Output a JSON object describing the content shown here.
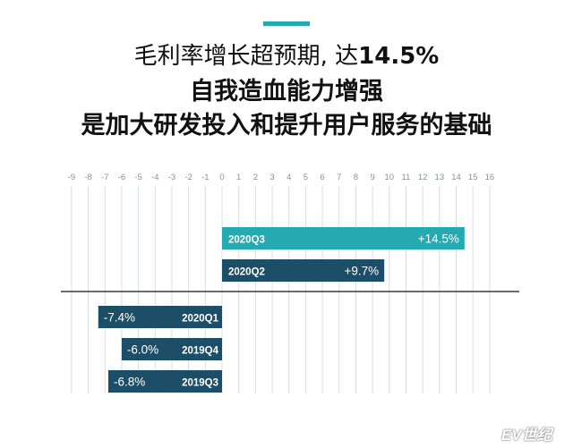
{
  "header": {
    "line1_prefix": "毛利率增长超预期, 达",
    "line1_highlight": "14.5%",
    "line2": "自我造血能力增强",
    "line3": "是加大研发投入和提升用户服务的基础"
  },
  "watermark": "EV世纪",
  "colors": {
    "accent": "#25aab2",
    "bar_positive_top": "#25aab2",
    "bar_dark": "#1d4e68",
    "gridline": "#d9dee2",
    "tick_text": "#8a9096",
    "axis": "#3a3a3a"
  },
  "chart_data": {
    "type": "bar",
    "orientation": "horizontal",
    "xlim": [
      -9,
      16
    ],
    "x_ticks": [
      "-9",
      "-8",
      "-7",
      "-6",
      "-5",
      "-4",
      "-3",
      "-2",
      "-1",
      "0",
      "1",
      "2",
      "3",
      "4",
      "5",
      "6",
      "7",
      "8",
      "9",
      "10",
      "11",
      "12",
      "13",
      "14",
      "15",
      "16"
    ],
    "grid": true,
    "categories": [
      "2020Q3",
      "2020Q2",
      "2020Q1",
      "2019Q4",
      "2019Q3"
    ],
    "values": [
      14.5,
      9.7,
      -7.4,
      -6.0,
      -6.8
    ],
    "value_labels": [
      "+14.5%",
      "+9.7%",
      "-7.4%",
      "-6.0%",
      "-6.8%"
    ]
  }
}
